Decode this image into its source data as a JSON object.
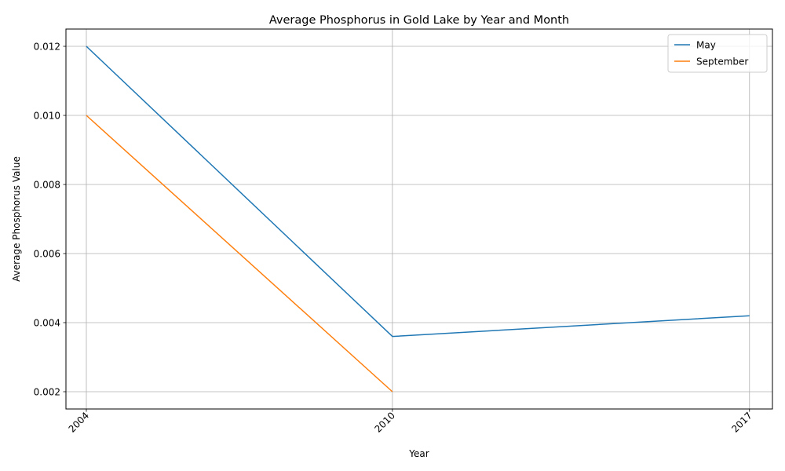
{
  "chart_data": {
    "type": "line",
    "title": "Average Phosphorus in Gold Lake by Year and Month",
    "xlabel": "Year",
    "ylabel": "Average Phosphorus Value",
    "x_ticks": [
      "2004",
      "2010",
      "2017"
    ],
    "y_ticks": [
      "0.002",
      "0.004",
      "0.006",
      "0.008",
      "0.010",
      "0.012"
    ],
    "xlim": [
      2003.6,
      2017.45
    ],
    "ylim": [
      0.0015,
      0.0125
    ],
    "grid": true,
    "legend_position": "top-right",
    "series": [
      {
        "name": "May",
        "color": "#1f77b4",
        "x": [
          2004,
          2010,
          2017
        ],
        "y": [
          0.012,
          0.0036,
          0.0042
        ]
      },
      {
        "name": "September",
        "color": "#ff7f0e",
        "x": [
          2004,
          2010
        ],
        "y": [
          0.01,
          0.002
        ]
      }
    ]
  }
}
